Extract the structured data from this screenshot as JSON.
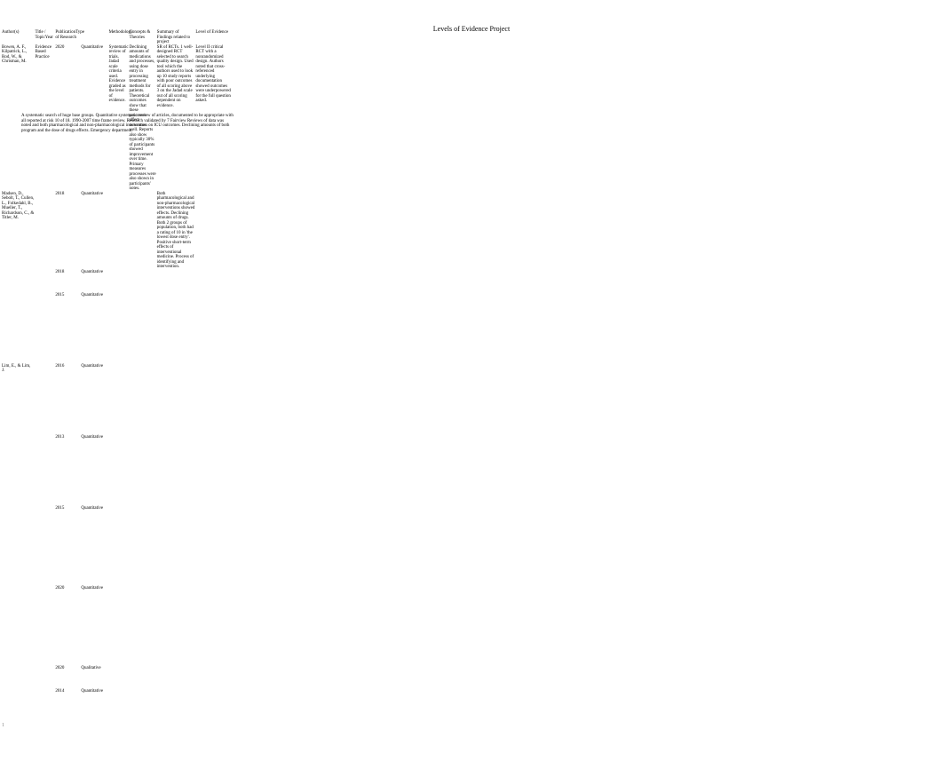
{
  "title": "Levels of Evidence Project",
  "page_number": "1",
  "headers": {
    "author": "Author(s)",
    "title": "Title / TopicYear",
    "year": "PublicationType of Research",
    "type": "",
    "method": "Methodology",
    "concepts": "Concepts & Theories",
    "findings": "Summary of Findings related to project",
    "evidence": "Level of Evidence"
  },
  "note": "A systematic search of huge base groups. Quantitative systematic review of articles, documented to be appropriate with all reported at risk 10 of 18. 1990-2007 time frame review. Research validated by 7 Fairview Reviews of data was noted and both pharmacological and non-pharmacological intervention on ICU outcomes. Declining amounts of both program and the dose of drugs effects. Emergency department.",
  "rows": [
    {
      "author": "Bowen, A. F., Kilpatrick, L., Rod, W., & Chrisman, M.",
      "title": "Evidence Based Practice",
      "year": "2020",
      "type": "Quantitative",
      "method": "Systematic review of trials. Jadad scale criteria used. Evidence graded as the level of evidence.",
      "concepts": "Declining amounts of medications and processes, using dose entry in processing treatment methods for patients. Theoretical outcomes show that these processes affect outcomes well. Reports also show typically 30% of participants showed improvement over time. Primary measures processes were also shown in participants' notes.",
      "findings": "SR of RCTs. 1 well-designed RCT selected to search quality design. Used tool which the authors used to look up 10 study reports with poor outcomes of all scoring above 3 on the Jadad scale out of all scoring dependent on evidence.",
      "evidence": "Level II critical RCT with a nonrandomized design. Authors noted that cross-referenced underlying documentation showed outcomes were underpowered for the full question asked.",
      "spacer": "sp-md"
    },
    {
      "author": "Madsen, D., Sebolt, T., Cullen, L., Folkedahl, B., Mueller, T., Richardson, C., & Titler, M.",
      "title": "",
      "year": "2018",
      "type": "Quantitative",
      "method": "",
      "concepts": "",
      "findings": "Both pharmacological and non-pharmacological interventions showed effects. Declining amounts of drugs. Both 2 groups of population, both had a rating of 10 in 'the lowest dose entry'. Positive short-term effects of interventional medicine. Process of identifying and intervention.",
      "evidence": "",
      "spacer": "sp-xs"
    },
    {
      "author": "",
      "title": "",
      "year": "2018",
      "type": "Quantitative",
      "method": "",
      "concepts": "",
      "findings": "",
      "evidence": "",
      "spacer": "sp-xs",
      "blur": true
    },
    {
      "author": "",
      "title": "",
      "year": "2015",
      "type": "Quantitative",
      "method": "",
      "concepts": "",
      "findings": "",
      "evidence": "",
      "spacer": "sp-md",
      "blur": true
    },
    {
      "author": "Lim, E., & Lim, J.",
      "title": "",
      "year": "2016",
      "type": "Quantitative",
      "method": "",
      "concepts": "",
      "findings": "",
      "evidence": "",
      "spacer": "sp-md",
      "blur": true
    },
    {
      "author": "",
      "title": "",
      "year": "2013",
      "type": "Quantitative",
      "method": "",
      "concepts": "",
      "findings": "",
      "evidence": "",
      "spacer": "sp-md",
      "blur": true
    },
    {
      "author": "",
      "title": "",
      "year": "2015",
      "type": "Quantitative",
      "method": "",
      "concepts": "",
      "findings": "",
      "evidence": "",
      "spacer": "sp-lg",
      "blur": true
    },
    {
      "author": "",
      "title": "",
      "year": "2020",
      "type": "Quantitative",
      "method": "",
      "concepts": "",
      "findings": "",
      "evidence": "",
      "spacer": "sp-lg",
      "blur": true
    },
    {
      "author": "",
      "title": "",
      "year": "2020",
      "type": "Qualitative",
      "method": "",
      "concepts": "",
      "findings": "",
      "evidence": "",
      "spacer": "sp-xs",
      "blur": true
    },
    {
      "author": "",
      "title": "",
      "year": "2014",
      "type": "Quantitative",
      "method": "",
      "concepts": "",
      "findings": "",
      "evidence": "",
      "spacer": "sp-lg",
      "blur": true
    }
  ]
}
